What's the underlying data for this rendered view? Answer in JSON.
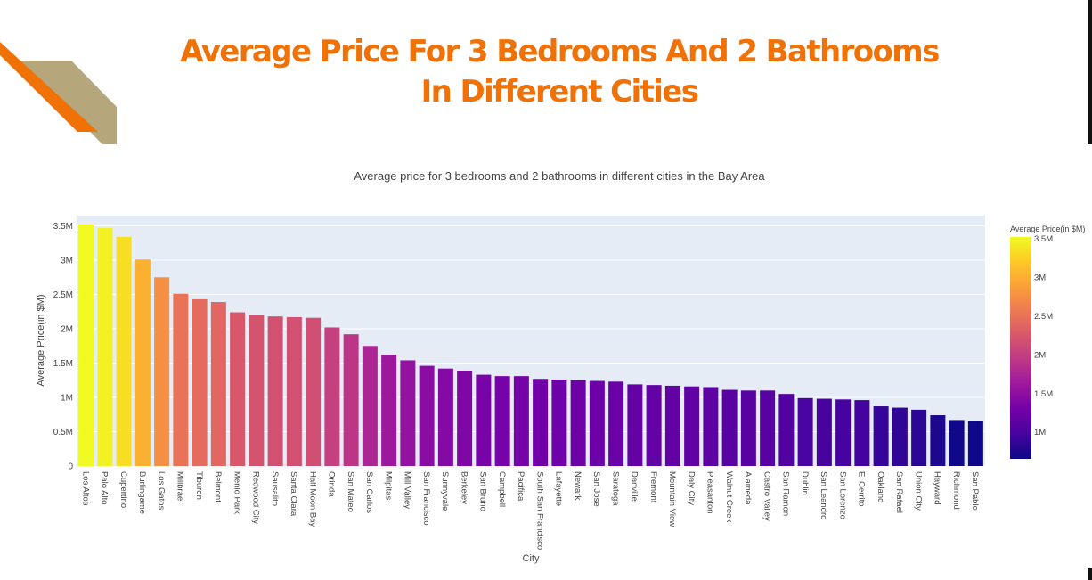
{
  "slide": {
    "title_line1": "Average Price For 3 Bedrooms And 2 Bathrooms",
    "title_line2": "In Different Cities"
  },
  "colors": {
    "title": "#f07106",
    "deco_orange": "#f07106",
    "deco_tan": "#b5a67b",
    "plot_bg": "#e5ecf6",
    "colorscale": [
      "#0d0887",
      "#46039f",
      "#7201a8",
      "#9c179e",
      "#bd3786",
      "#d8576b",
      "#ed7953",
      "#fb9f3a",
      "#fdca26",
      "#f0f921"
    ]
  },
  "chart_data": {
    "type": "bar",
    "title": "Average price for 3 bedrooms and 2 bathrooms in different cities in the Bay Area",
    "xlabel": "City",
    "ylabel": "Average Price(in $M)",
    "ylim": [
      0,
      3.65
    ],
    "yticks": [
      0,
      0.5,
      1,
      1.5,
      2,
      2.5,
      3,
      3.5
    ],
    "ytick_labels": [
      "0",
      "0.5M",
      "1M",
      "1.5M",
      "2M",
      "2.5M",
      "3M",
      "3.5M"
    ],
    "grid": true,
    "legend": "none",
    "colorbar": {
      "title": "Average Price(in $M)",
      "range": [
        0.65,
        3.52
      ],
      "ticks": [
        1,
        1.5,
        2,
        2.5,
        3,
        3.5
      ],
      "tick_labels": [
        "1M",
        "1.5M",
        "2M",
        "2.5M",
        "3M",
        "3.5M"
      ]
    },
    "categories": [
      "Los Altos",
      "Palo Alto",
      "Cupertino",
      "Burlingame",
      "Los Gatos",
      "Millbrae",
      "Tiburon",
      "Belmont",
      "Menlo Park",
      "Redwood City",
      "Sausalito",
      "Santa Clara",
      "Half Moon Bay",
      "Orinda",
      "San Mateo",
      "San Carlos",
      "Milpitas",
      "Mill Valley",
      "San Francisco",
      "Sunnyvale",
      "Berkeley",
      "San Bruno",
      "Campbell",
      "Pacifica",
      "South San Francisco",
      "Lafayette",
      "Newark",
      "San Jose",
      "Saratoga",
      "Danville",
      "Fremont",
      "Mountain View",
      "Daly City",
      "Pleasanton",
      "Walnut Creek",
      "Alameda",
      "Castro Valley",
      "San Ramon",
      "Dublin",
      "San Leandro",
      "San Lorenzo",
      "El Cerrito",
      "Oakland",
      "San Rafael",
      "Union City",
      "Hayward",
      "Richmond",
      "San Pablo"
    ],
    "values": [
      3.52,
      3.47,
      3.34,
      3.01,
      2.75,
      2.51,
      2.43,
      2.39,
      2.24,
      2.2,
      2.18,
      2.17,
      2.16,
      2.02,
      1.92,
      1.75,
      1.62,
      1.54,
      1.46,
      1.42,
      1.39,
      1.33,
      1.31,
      1.31,
      1.27,
      1.26,
      1.25,
      1.24,
      1.23,
      1.19,
      1.18,
      1.17,
      1.16,
      1.15,
      1.11,
      1.1,
      1.1,
      1.05,
      0.99,
      0.98,
      0.97,
      0.96,
      0.87,
      0.85,
      0.82,
      0.74,
      0.67,
      0.66
    ]
  }
}
